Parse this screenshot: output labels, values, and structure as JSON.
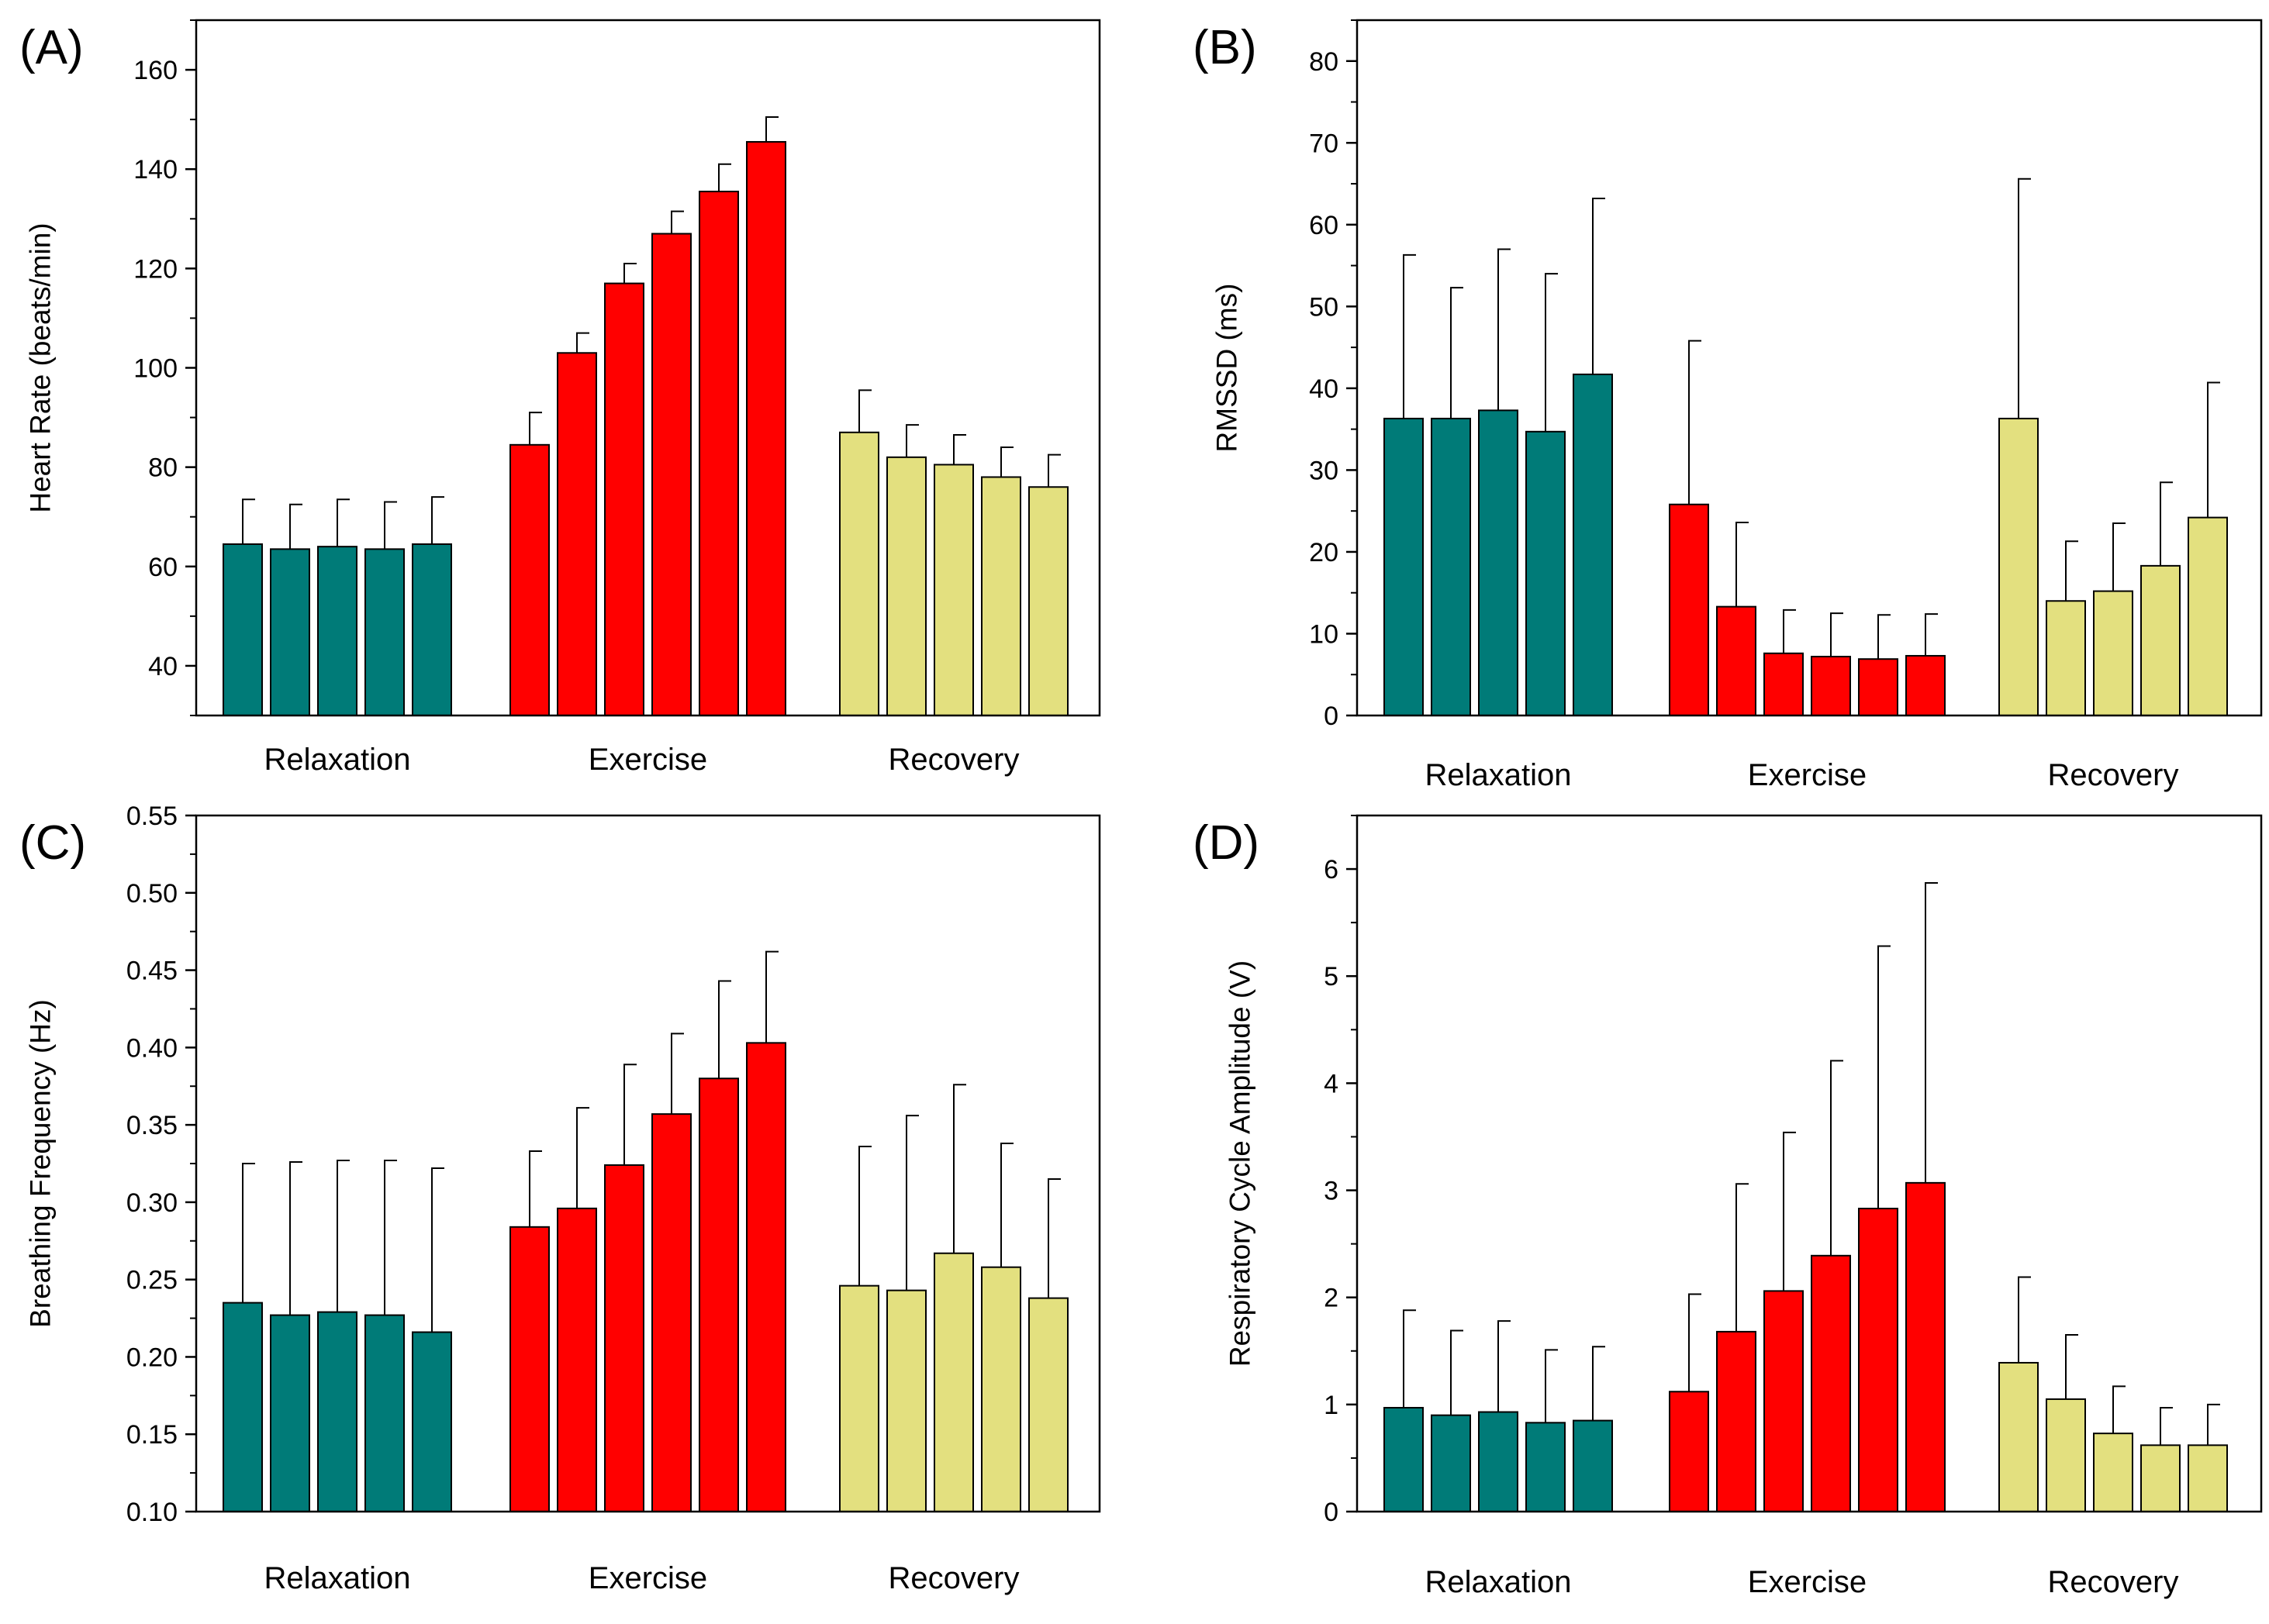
{
  "colors": {
    "relaxation": "#007b78",
    "exercise": "#ff0000",
    "recovery": "#e3e07f",
    "stroke": "#000000"
  },
  "chart_data": [
    {
      "type": "bar",
      "panel_label": "(A)",
      "ylabel": "Heart Rate (beats/min)",
      "ylim": [
        30,
        170
      ],
      "yticks": [
        40,
        60,
        80,
        100,
        120,
        140,
        160
      ],
      "ytick_labels": [
        "40",
        "60",
        "80",
        "100",
        "120",
        "140",
        "160"
      ],
      "groups": [
        {
          "label": "Relaxation",
          "color_key": "relaxation",
          "values": [
            64.5,
            63.5,
            64,
            63.5,
            64.5
          ],
          "errors": [
            9,
            9,
            9.5,
            9.5,
            9.5
          ]
        },
        {
          "label": "Exercise",
          "color_key": "exercise",
          "values": [
            84.5,
            103,
            117,
            127,
            135.5,
            145.5
          ],
          "errors": [
            6.5,
            4,
            4,
            4.5,
            5.5,
            5
          ]
        },
        {
          "label": "Recovery",
          "color_key": "recovery",
          "values": [
            87,
            82,
            80.5,
            78,
            76
          ],
          "errors": [
            8.5,
            6.5,
            6,
            6,
            6.5
          ]
        }
      ]
    },
    {
      "type": "bar",
      "panel_label": "(B)",
      "ylabel": "RMSSD (ms)",
      "ylim": [
        0,
        85
      ],
      "yticks": [
        0,
        10,
        20,
        30,
        40,
        50,
        60,
        70,
        80
      ],
      "ytick_labels": [
        "0",
        "10",
        "20",
        "30",
        "40",
        "50",
        "60",
        "70",
        "80"
      ],
      "groups": [
        {
          "label": "Relaxation",
          "color_key": "relaxation",
          "values": [
            36.3,
            36.3,
            37.3,
            34.7,
            41.7
          ],
          "errors": [
            20,
            16,
            19.7,
            19.3,
            21.5
          ]
        },
        {
          "label": "Exercise",
          "color_key": "exercise",
          "values": [
            25.8,
            13.3,
            7.6,
            7.2,
            6.9,
            7.3
          ],
          "errors": [
            20,
            10.3,
            5.3,
            5.3,
            5.4,
            5.1
          ]
        },
        {
          "label": "Recovery",
          "color_key": "recovery",
          "values": [
            36.3,
            14,
            15.2,
            18.3,
            24.2
          ],
          "errors": [
            29.3,
            7.3,
            8.3,
            10.2,
            16.5
          ]
        }
      ]
    },
    {
      "type": "bar",
      "panel_label": "(C)",
      "ylabel": "Breathing Frequency (Hz)",
      "ylim": [
        0.1,
        0.55
      ],
      "yticks": [
        0.1,
        0.15,
        0.2,
        0.25,
        0.3,
        0.35,
        0.4,
        0.45,
        0.5,
        0.55
      ],
      "ytick_labels": [
        "0.10",
        "0.15",
        "0.20",
        "0.25",
        "0.30",
        "0.35",
        "0.40",
        "0.45",
        "0.50",
        "0.55"
      ],
      "groups": [
        {
          "label": "Relaxation",
          "color_key": "relaxation",
          "values": [
            0.235,
            0.227,
            0.229,
            0.227,
            0.216
          ],
          "errors": [
            0.09,
            0.099,
            0.098,
            0.1,
            0.106
          ]
        },
        {
          "label": "Exercise",
          "color_key": "exercise",
          "values": [
            0.284,
            0.296,
            0.324,
            0.357,
            0.38,
            0.403
          ],
          "errors": [
            0.049,
            0.065,
            0.065,
            0.052,
            0.063,
            0.059
          ]
        },
        {
          "label": "Recovery",
          "color_key": "recovery",
          "values": [
            0.246,
            0.243,
            0.267,
            0.258,
            0.238
          ],
          "errors": [
            0.09,
            0.113,
            0.109,
            0.08,
            0.077
          ]
        }
      ]
    },
    {
      "type": "bar",
      "panel_label": "(D)",
      "ylabel": "Respiratory Cycle Amplitude (V)",
      "ylim": [
        0,
        6.5
      ],
      "yticks": [
        0,
        1,
        2,
        3,
        4,
        5,
        6
      ],
      "ytick_labels": [
        "0",
        "1",
        "2",
        "3",
        "4",
        "5",
        "6"
      ],
      "groups": [
        {
          "label": "Relaxation",
          "color_key": "relaxation",
          "values": [
            0.97,
            0.9,
            0.93,
            0.83,
            0.85
          ],
          "errors": [
            0.91,
            0.79,
            0.85,
            0.68,
            0.69
          ]
        },
        {
          "label": "Exercise",
          "color_key": "exercise",
          "values": [
            1.12,
            1.68,
            2.06,
            2.39,
            2.83,
            3.07
          ],
          "errors": [
            0.91,
            1.38,
            1.48,
            1.82,
            2.45,
            2.8
          ]
        },
        {
          "label": "Recovery",
          "color_key": "recovery",
          "values": [
            1.39,
            1.05,
            0.73,
            0.62,
            0.62
          ],
          "errors": [
            0.8,
            0.6,
            0.44,
            0.35,
            0.38
          ]
        }
      ]
    }
  ]
}
